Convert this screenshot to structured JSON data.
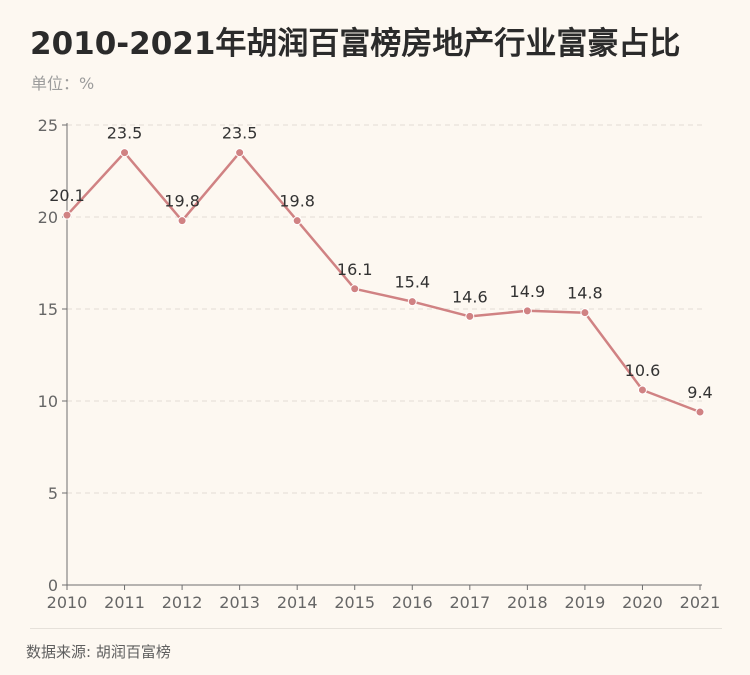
{
  "header": {
    "title": "2010-2021年胡润百富榜房地产行业富豪占比",
    "unit_label": "单位：%"
  },
  "footer": {
    "source": "数据来源: 胡润百富榜"
  },
  "colors": {
    "line": "#d08283",
    "point": "#d08283",
    "axis": "#6e6e6e",
    "grid": "#e3ddd5",
    "label": "#333333",
    "tick": "#666666"
  },
  "chart_data": {
    "type": "line",
    "title": "2010-2021年胡润百富榜房地产行业富豪占比",
    "ylabel": "单位：%",
    "xlabel": "",
    "categories": [
      "2010",
      "2011",
      "2012",
      "2013",
      "2014",
      "2015",
      "2016",
      "2017",
      "2018",
      "2019",
      "2020",
      "2021"
    ],
    "values": [
      20.1,
      23.5,
      19.8,
      23.5,
      19.8,
      16.1,
      15.4,
      14.6,
      14.9,
      14.8,
      10.6,
      9.4
    ],
    "data_labels": [
      "20.1",
      "23.5",
      "19.8",
      "23.5",
      "19.8",
      "16.1",
      "15.4",
      "14.6",
      "14.9",
      "14.8",
      "10.6",
      "9.4"
    ],
    "yticks": [
      0,
      5,
      10,
      15,
      20,
      25
    ],
    "ylim": [
      0,
      25
    ],
    "grid": true,
    "legend": "none"
  }
}
